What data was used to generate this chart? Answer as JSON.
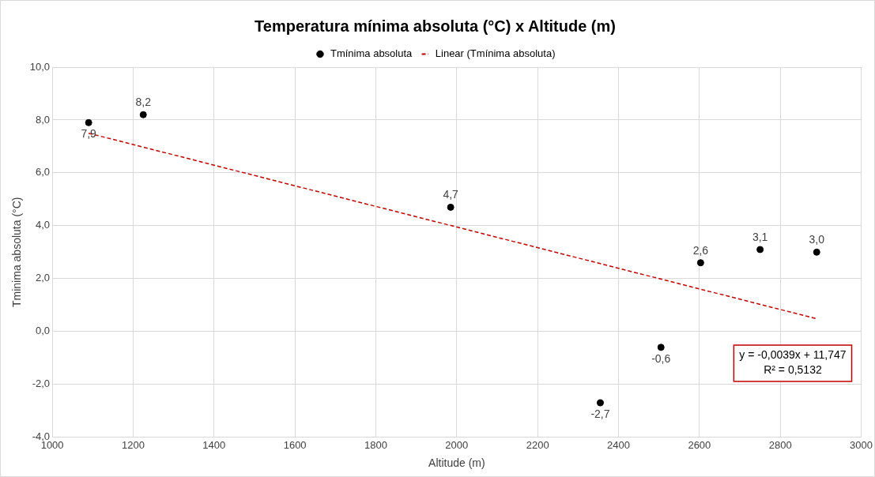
{
  "chart_data": {
    "type": "scatter",
    "title": "Temperatura mínima absoluta (°C) x Altitude (m)",
    "xlabel": "Altitude (m)",
    "ylabel": "Tminima absoluta (°C)",
    "series": [
      {
        "name": "Tmínima absoluta",
        "color": "#000000",
        "x": [
          1090,
          1225,
          1985,
          2355,
          2505,
          2603,
          2750,
          2890
        ],
        "values": [
          7.9,
          8.2,
          4.7,
          -2.7,
          -0.6,
          2.6,
          3.1,
          3.0
        ],
        "value_labels": [
          "7,9",
          "8,2",
          "4,7",
          "-2,7",
          "-0,6",
          "2,6",
          "3,1",
          "3,0"
        ]
      },
      {
        "name": "Linear (Tmínima absoluta)",
        "type": "line",
        "color": "#c00000",
        "line_style": "dashed",
        "marker": "none",
        "x": [
          1090,
          2890
        ],
        "values": [
          7.5,
          0.48
        ]
      }
    ],
    "marker": "circle",
    "xlim": [
      1000,
      3000
    ],
    "xticks": [
      1000,
      1200,
      1400,
      1600,
      1800,
      2000,
      2200,
      2400,
      2600,
      2800,
      3000
    ],
    "ylim": [
      -4,
      10
    ],
    "yticks": [
      {
        "value": -4,
        "label": "-4,0"
      },
      {
        "value": -2,
        "label": "-2,0"
      },
      {
        "value": 0,
        "label": "0,0"
      },
      {
        "value": 2,
        "label": "2,0"
      },
      {
        "value": 4,
        "label": "4,0"
      },
      {
        "value": 6,
        "label": "6,0"
      },
      {
        "value": 8,
        "label": "8,0"
      },
      {
        "value": 10,
        "label": "10,0"
      }
    ],
    "grid": true,
    "legend": "top",
    "annotations": [
      "y = -0,0039x + 11,747",
      "R² = 0,5132"
    ]
  }
}
